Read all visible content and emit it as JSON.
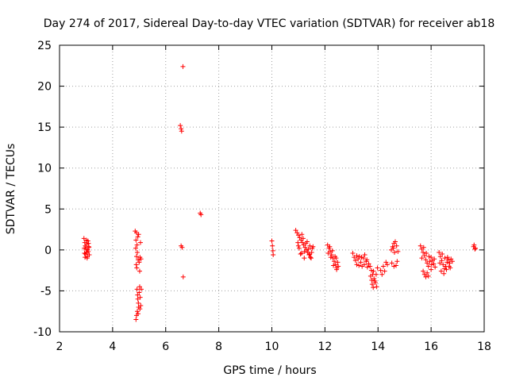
{
  "chart_data": {
    "type": "scatter",
    "title": "Day 274 of 2017, Sidereal Day-to-day VTEC variation (SDTVAR) for receiver ab18",
    "xlabel": "GPS time / hours",
    "ylabel": "SDTVAR / TECUs",
    "xlim": [
      2,
      18
    ],
    "ylim": [
      -10,
      25
    ],
    "xticks": [
      2,
      4,
      6,
      8,
      10,
      12,
      14,
      16,
      18
    ],
    "yticks": [
      -10,
      -5,
      0,
      5,
      10,
      15,
      20,
      25
    ],
    "grid": true,
    "marker": "plus",
    "color": "#ff0000",
    "series": [
      {
        "name": "SDTVAR",
        "points": [
          [
            2.92,
            1.4
          ],
          [
            2.95,
            0.9
          ],
          [
            2.97,
            0.5
          ],
          [
            3.0,
            0.1
          ],
          [
            3.02,
            -0.3
          ],
          [
            3.05,
            -0.8
          ],
          [
            2.93,
            0.2
          ],
          [
            2.98,
            -0.5
          ],
          [
            3.03,
            0.7
          ],
          [
            3.07,
            1.1
          ],
          [
            3.1,
            0.4
          ],
          [
            3.08,
            -0.2
          ],
          [
            3.12,
            -0.6
          ],
          [
            2.96,
            -0.9
          ],
          [
            3.01,
            1.2
          ],
          [
            3.06,
            0.0
          ],
          [
            3.09,
            0.8
          ],
          [
            2.94,
            -0.4
          ],
          [
            3.04,
            -1.0
          ],
          [
            3.11,
            0.3
          ],
          [
            4.85,
            2.3
          ],
          [
            4.9,
            2.1
          ],
          [
            4.95,
            1.6
          ],
          [
            4.88,
            1.2
          ],
          [
            4.92,
            0.6
          ],
          [
            4.87,
            0.2
          ],
          [
            4.93,
            -0.3
          ],
          [
            4.9,
            -0.8
          ],
          [
            4.96,
            -1.2
          ],
          [
            5.0,
            -1.5
          ],
          [
            5.03,
            -0.9
          ],
          [
            5.05,
            0.9
          ],
          [
            4.98,
            1.9
          ],
          [
            4.91,
            -2.2
          ],
          [
            5.02,
            -2.6
          ],
          [
            5.07,
            -1.1
          ],
          [
            4.89,
            -1.8
          ],
          [
            4.92,
            -4.8
          ],
          [
            4.94,
            -5.5
          ],
          [
            4.95,
            -6.0
          ],
          [
            4.97,
            -6.5
          ],
          [
            4.98,
            -7.0
          ],
          [
            4.93,
            -7.5
          ],
          [
            4.9,
            -8.0
          ],
          [
            4.88,
            -8.5
          ],
          [
            5.0,
            -5.2
          ],
          [
            5.02,
            -4.5
          ],
          [
            5.04,
            -5.8
          ],
          [
            5.06,
            -6.8
          ],
          [
            5.03,
            -7.2
          ],
          [
            4.96,
            -7.8
          ],
          [
            5.08,
            -4.8
          ],
          [
            6.55,
            15.2
          ],
          [
            6.58,
            14.8
          ],
          [
            6.6,
            14.5
          ],
          [
            6.65,
            22.4
          ],
          [
            6.58,
            0.5
          ],
          [
            6.62,
            0.3
          ],
          [
            6.66,
            -3.3
          ],
          [
            7.3,
            4.5
          ],
          [
            7.33,
            4.3
          ],
          [
            10.0,
            1.1
          ],
          [
            10.02,
            0.5
          ],
          [
            10.04,
            -0.1
          ],
          [
            10.05,
            -0.6
          ],
          [
            10.9,
            2.4
          ],
          [
            10.95,
            2.1
          ],
          [
            11.0,
            1.8
          ],
          [
            11.05,
            1.5
          ],
          [
            11.1,
            1.2
          ],
          [
            11.15,
            0.9
          ],
          [
            11.2,
            0.6
          ],
          [
            11.25,
            0.3
          ],
          [
            11.3,
            0.0
          ],
          [
            11.35,
            -0.3
          ],
          [
            11.4,
            -0.6
          ],
          [
            11.45,
            -0.9
          ],
          [
            11.5,
            -0.3
          ],
          [
            11.55,
            0.4
          ],
          [
            10.98,
            0.9
          ],
          [
            11.03,
            0.2
          ],
          [
            11.08,
            -0.5
          ],
          [
            11.13,
            1.9
          ],
          [
            11.18,
            1.4
          ],
          [
            11.23,
            -0.2
          ],
          [
            11.28,
            0.8
          ],
          [
            11.33,
            1.0
          ],
          [
            11.38,
            0.1
          ],
          [
            11.43,
            0.5
          ],
          [
            11.48,
            -1.0
          ],
          [
            11.52,
            0.2
          ],
          [
            11.0,
            0.5
          ],
          [
            11.12,
            -0.4
          ],
          [
            11.22,
            -1.0
          ],
          [
            11.42,
            -0.5
          ],
          [
            12.1,
            0.6
          ],
          [
            12.15,
            0.2
          ],
          [
            12.2,
            -0.2
          ],
          [
            12.25,
            -0.6
          ],
          [
            12.3,
            -1.0
          ],
          [
            12.35,
            -1.4
          ],
          [
            12.4,
            -1.8
          ],
          [
            12.45,
            -2.2
          ],
          [
            12.5,
            -2.0
          ],
          [
            12.18,
            0.4
          ],
          [
            12.28,
            -0.1
          ],
          [
            12.38,
            -0.8
          ],
          [
            12.42,
            -1.0
          ],
          [
            12.48,
            -1.5
          ],
          [
            12.12,
            -0.4
          ],
          [
            12.22,
            -0.9
          ],
          [
            12.32,
            -1.9
          ],
          [
            12.44,
            -2.4
          ],
          [
            13.05,
            -0.4
          ],
          [
            13.1,
            -0.9
          ],
          [
            13.15,
            -1.3
          ],
          [
            13.2,
            -1.8
          ],
          [
            13.25,
            -1.1
          ],
          [
            13.3,
            -0.8
          ],
          [
            13.35,
            -1.5
          ],
          [
            13.4,
            -2.0
          ],
          [
            13.45,
            -1.0
          ],
          [
            13.5,
            -0.6
          ],
          [
            13.55,
            -1.4
          ],
          [
            13.6,
            -2.1
          ],
          [
            13.65,
            -1.7
          ],
          [
            13.2,
            -0.7
          ],
          [
            13.28,
            -1.9
          ],
          [
            13.38,
            -0.9
          ],
          [
            13.48,
            -1.8
          ],
          [
            13.58,
            -1.2
          ],
          [
            13.7,
            -2.0
          ],
          [
            13.75,
            -2.5
          ],
          [
            13.8,
            -3.0
          ],
          [
            13.85,
            -3.5
          ],
          [
            13.9,
            -4.0
          ],
          [
            13.95,
            -4.5
          ],
          [
            13.72,
            -3.2
          ],
          [
            13.78,
            -4.2
          ],
          [
            13.83,
            -2.6
          ],
          [
            13.88,
            -3.8
          ],
          [
            13.93,
            -3.0
          ],
          [
            13.98,
            -2.2
          ],
          [
            13.82,
            -4.6
          ],
          [
            13.76,
            -3.7
          ],
          [
            14.1,
            -2.5
          ],
          [
            14.2,
            -2.0
          ],
          [
            14.3,
            -1.5
          ],
          [
            14.15,
            -3.0
          ],
          [
            14.25,
            -2.6
          ],
          [
            14.35,
            -1.8
          ],
          [
            14.5,
            0.0
          ],
          [
            14.55,
            0.4
          ],
          [
            14.6,
            0.8
          ],
          [
            14.65,
            1.0
          ],
          [
            14.58,
            0.2
          ],
          [
            14.62,
            -0.3
          ],
          [
            14.7,
            0.5
          ],
          [
            14.75,
            -0.2
          ],
          [
            14.52,
            -1.6
          ],
          [
            14.6,
            -2.0
          ],
          [
            14.68,
            -1.9
          ],
          [
            14.72,
            -1.4
          ],
          [
            15.6,
            0.5
          ],
          [
            15.65,
            0.1
          ],
          [
            15.7,
            -0.3
          ],
          [
            15.75,
            -0.7
          ],
          [
            15.8,
            -1.2
          ],
          [
            15.85,
            -1.6
          ],
          [
            15.9,
            -2.0
          ],
          [
            15.95,
            -1.4
          ],
          [
            16.0,
            -0.9
          ],
          [
            16.05,
            -1.3
          ],
          [
            16.1,
            -1.7
          ],
          [
            16.15,
            -2.1
          ],
          [
            15.7,
            -2.6
          ],
          [
            15.75,
            -3.0
          ],
          [
            15.8,
            -3.3
          ],
          [
            15.85,
            -2.8
          ],
          [
            15.9,
            -3.2
          ],
          [
            16.0,
            -2.4
          ],
          [
            15.65,
            -1.0
          ],
          [
            15.72,
            0.3
          ],
          [
            15.82,
            -0.4
          ],
          [
            15.92,
            -0.8
          ],
          [
            16.02,
            -1.8
          ],
          [
            16.12,
            -1.1
          ],
          [
            16.3,
            -0.3
          ],
          [
            16.35,
            -0.8
          ],
          [
            16.4,
            -1.3
          ],
          [
            16.45,
            -1.8
          ],
          [
            16.5,
            -2.3
          ],
          [
            16.55,
            -2.0
          ],
          [
            16.6,
            -1.5
          ],
          [
            16.65,
            -1.2
          ],
          [
            16.7,
            -1.6
          ],
          [
            16.75,
            -1.1
          ],
          [
            16.8,
            -1.4
          ],
          [
            16.38,
            -2.6
          ],
          [
            16.48,
            -2.9
          ],
          [
            16.58,
            -2.4
          ],
          [
            16.68,
            -2.0
          ],
          [
            16.42,
            -0.5
          ],
          [
            16.52,
            -1.0
          ],
          [
            16.62,
            -0.9
          ],
          [
            16.72,
            -2.2
          ],
          [
            16.33,
            -1.6
          ],
          [
            17.6,
            0.4
          ],
          [
            17.65,
            0.1
          ],
          [
            17.62,
            0.6
          ],
          [
            17.67,
            0.2
          ]
        ]
      }
    ]
  }
}
